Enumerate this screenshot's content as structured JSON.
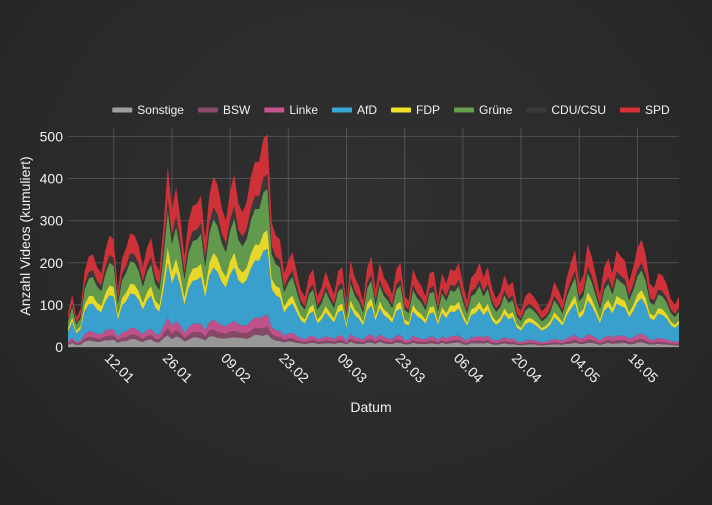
{
  "chart_data": {
    "type": "area",
    "stacked": true,
    "xlabel": "Datum",
    "ylabel": "Anzahl Videos (kumuliert)",
    "ylim": [
      0,
      520
    ],
    "yticks": [
      0,
      100,
      200,
      300,
      400,
      500
    ],
    "x_start": "2025-01-01",
    "x_end": "2025-05-28",
    "xticks": [
      {
        "date": "2025-01-12",
        "label": "12.01"
      },
      {
        "date": "2025-01-26",
        "label": "26.01"
      },
      {
        "date": "2025-02-09",
        "label": "09.02"
      },
      {
        "date": "2025-02-23",
        "label": "23.02"
      },
      {
        "date": "2025-03-09",
        "label": "09.03"
      },
      {
        "date": "2025-03-23",
        "label": "23.03"
      },
      {
        "date": "2025-04-06",
        "label": "06.04"
      },
      {
        "date": "2025-04-20",
        "label": "20.04"
      },
      {
        "date": "2025-05-04",
        "label": "04.05"
      },
      {
        "date": "2025-05-18",
        "label": "18.05"
      }
    ],
    "legend_position": "top",
    "grid": true,
    "totals_by_date": [
      [
        "2025-01-01",
        80
      ],
      [
        "2025-01-02",
        125
      ],
      [
        "2025-01-03",
        70
      ],
      [
        "2025-01-04",
        90
      ],
      [
        "2025-01-05",
        180
      ],
      [
        "2025-01-06",
        215
      ],
      [
        "2025-01-07",
        220
      ],
      [
        "2025-01-08",
        190
      ],
      [
        "2025-01-09",
        175
      ],
      [
        "2025-01-10",
        230
      ],
      [
        "2025-01-11",
        265
      ],
      [
        "2025-01-12",
        255
      ],
      [
        "2025-01-13",
        135
      ],
      [
        "2025-01-14",
        210
      ],
      [
        "2025-01-15",
        235
      ],
      [
        "2025-01-16",
        270
      ],
      [
        "2025-01-17",
        265
      ],
      [
        "2025-01-18",
        240
      ],
      [
        "2025-01-19",
        190
      ],
      [
        "2025-01-20",
        235
      ],
      [
        "2025-01-21",
        260
      ],
      [
        "2025-01-22",
        200
      ],
      [
        "2025-01-23",
        180
      ],
      [
        "2025-01-24",
        290
      ],
      [
        "2025-01-25",
        430
      ],
      [
        "2025-01-26",
        325
      ],
      [
        "2025-01-27",
        380
      ],
      [
        "2025-01-28",
        310
      ],
      [
        "2025-01-29",
        215
      ],
      [
        "2025-01-30",
        300
      ],
      [
        "2025-01-31",
        335
      ],
      [
        "2025-02-01",
        340
      ],
      [
        "2025-02-02",
        360
      ],
      [
        "2025-02-03",
        255
      ],
      [
        "2025-02-04",
        360
      ],
      [
        "2025-02-05",
        405
      ],
      [
        "2025-02-06",
        385
      ],
      [
        "2025-02-07",
        330
      ],
      [
        "2025-02-08",
        300
      ],
      [
        "2025-02-09",
        370
      ],
      [
        "2025-02-10",
        410
      ],
      [
        "2025-02-11",
        340
      ],
      [
        "2025-02-12",
        320
      ],
      [
        "2025-02-13",
        345
      ],
      [
        "2025-02-14",
        405
      ],
      [
        "2025-02-15",
        440
      ],
      [
        "2025-02-16",
        440
      ],
      [
        "2025-02-17",
        495
      ],
      [
        "2025-02-18",
        505
      ],
      [
        "2025-02-19",
        295
      ],
      [
        "2025-02-20",
        265
      ],
      [
        "2025-02-21",
        255
      ],
      [
        "2025-02-22",
        175
      ],
      [
        "2025-02-23",
        205
      ],
      [
        "2025-02-24",
        225
      ],
      [
        "2025-02-25",
        180
      ],
      [
        "2025-02-26",
        135
      ],
      [
        "2025-02-27",
        120
      ],
      [
        "2025-02-28",
        170
      ],
      [
        "2025-03-01",
        185
      ],
      [
        "2025-03-02",
        120
      ],
      [
        "2025-03-03",
        140
      ],
      [
        "2025-03-04",
        180
      ],
      [
        "2025-03-05",
        150
      ],
      [
        "2025-03-06",
        125
      ],
      [
        "2025-03-07",
        180
      ],
      [
        "2025-03-08",
        190
      ],
      [
        "2025-03-09",
        100
      ],
      [
        "2025-03-10",
        205
      ],
      [
        "2025-03-11",
        165
      ],
      [
        "2025-03-12",
        145
      ],
      [
        "2025-03-13",
        110
      ],
      [
        "2025-03-14",
        190
      ],
      [
        "2025-03-15",
        215
      ],
      [
        "2025-03-16",
        135
      ],
      [
        "2025-03-17",
        200
      ],
      [
        "2025-03-18",
        165
      ],
      [
        "2025-03-19",
        150
      ],
      [
        "2025-03-20",
        125
      ],
      [
        "2025-03-21",
        185
      ],
      [
        "2025-03-22",
        200
      ],
      [
        "2025-03-23",
        120
      ],
      [
        "2025-03-24",
        110
      ],
      [
        "2025-03-25",
        185
      ],
      [
        "2025-03-26",
        160
      ],
      [
        "2025-03-27",
        145
      ],
      [
        "2025-03-28",
        120
      ],
      [
        "2025-03-29",
        175
      ],
      [
        "2025-03-30",
        180
      ],
      [
        "2025-03-31",
        115
      ],
      [
        "2025-04-01",
        175
      ],
      [
        "2025-04-02",
        150
      ],
      [
        "2025-04-03",
        185
      ],
      [
        "2025-04-04",
        180
      ],
      [
        "2025-04-05",
        200
      ],
      [
        "2025-04-06",
        150
      ],
      [
        "2025-04-07",
        110
      ],
      [
        "2025-04-08",
        165
      ],
      [
        "2025-04-09",
        175
      ],
      [
        "2025-04-10",
        200
      ],
      [
        "2025-04-11",
        165
      ],
      [
        "2025-04-12",
        190
      ],
      [
        "2025-04-13",
        140
      ],
      [
        "2025-04-14",
        115
      ],
      [
        "2025-04-15",
        130
      ],
      [
        "2025-04-16",
        170
      ],
      [
        "2025-04-17",
        145
      ],
      [
        "2025-04-18",
        155
      ],
      [
        "2025-04-19",
        100
      ],
      [
        "2025-04-20",
        85
      ],
      [
        "2025-04-21",
        120
      ],
      [
        "2025-04-22",
        130
      ],
      [
        "2025-04-23",
        120
      ],
      [
        "2025-04-24",
        105
      ],
      [
        "2025-04-25",
        85
      ],
      [
        "2025-04-26",
        95
      ],
      [
        "2025-04-27",
        115
      ],
      [
        "2025-04-28",
        155
      ],
      [
        "2025-04-29",
        135
      ],
      [
        "2025-04-30",
        110
      ],
      [
        "2025-05-01",
        165
      ],
      [
        "2025-05-02",
        200
      ],
      [
        "2025-05-03",
        230
      ],
      [
        "2025-05-04",
        150
      ],
      [
        "2025-05-05",
        170
      ],
      [
        "2025-05-06",
        245
      ],
      [
        "2025-05-07",
        215
      ],
      [
        "2025-05-08",
        170
      ],
      [
        "2025-05-09",
        125
      ],
      [
        "2025-05-10",
        190
      ],
      [
        "2025-05-11",
        210
      ],
      [
        "2025-05-12",
        175
      ],
      [
        "2025-05-13",
        230
      ],
      [
        "2025-05-14",
        215
      ],
      [
        "2025-05-15",
        205
      ],
      [
        "2025-05-16",
        155
      ],
      [
        "2025-05-17",
        190
      ],
      [
        "2025-05-18",
        235
      ],
      [
        "2025-05-19",
        255
      ],
      [
        "2025-05-20",
        220
      ],
      [
        "2025-05-21",
        150
      ],
      [
        "2025-05-22",
        140
      ],
      [
        "2025-05-23",
        175
      ],
      [
        "2025-05-24",
        170
      ],
      [
        "2025-05-25",
        150
      ],
      [
        "2025-05-26",
        115
      ],
      [
        "2025-05-27",
        100
      ],
      [
        "2025-05-28",
        120
      ]
    ],
    "share_early": [
      0.07,
      0.04,
      0.06,
      0.3,
      0.09,
      0.2,
      0.07,
      0.17
    ],
    "share_late": [
      0.04,
      0.03,
      0.05,
      0.33,
      0.08,
      0.18,
      0.07,
      0.22
    ],
    "series": [
      {
        "name": "Sonstige",
        "color": "#9e9e9e"
      },
      {
        "name": "BSW",
        "color": "#8b4a6a"
      },
      {
        "name": "Linke",
        "color": "#c7548f"
      },
      {
        "name": "AfD",
        "color": "#3aa7d6"
      },
      {
        "name": "FDP",
        "color": "#f0e22a"
      },
      {
        "name": "Grüne",
        "color": "#64a04e"
      },
      {
        "name": "CDU/CSU",
        "color": "#3a3a3a"
      },
      {
        "name": "SPD",
        "color": "#d8313a"
      }
    ]
  }
}
